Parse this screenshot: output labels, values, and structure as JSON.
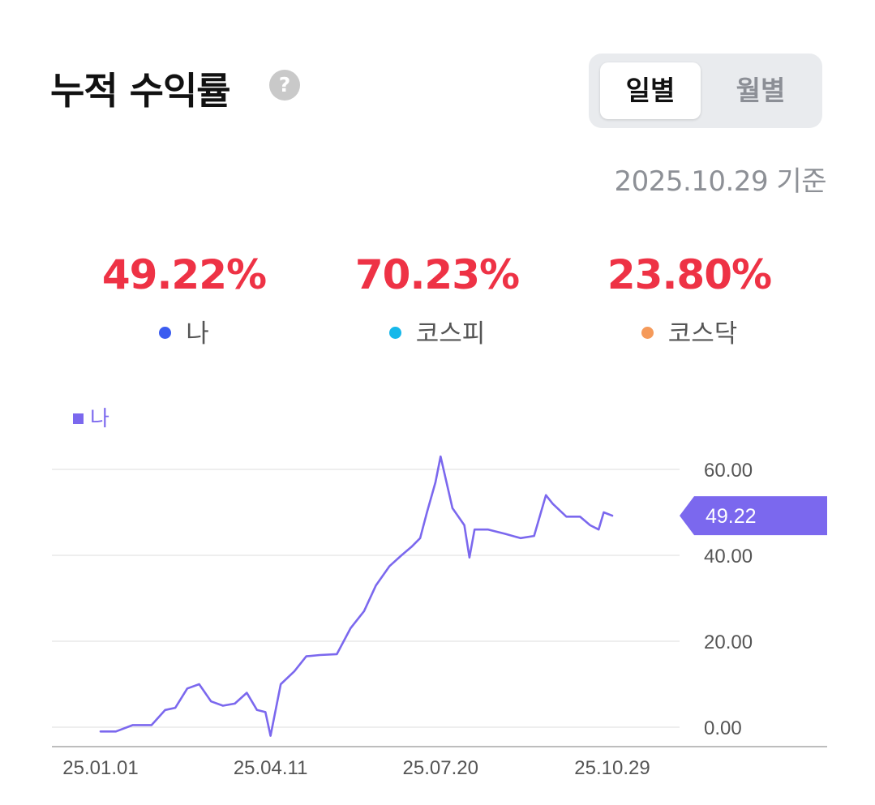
{
  "header": {
    "title": "누적 수익률",
    "help_icon": "question-circle-icon",
    "toggle": {
      "daily": "일별",
      "monthly": "월별",
      "selected": "daily"
    },
    "as_of": "2025.10.29 기준"
  },
  "stats": [
    {
      "value": "49.22%",
      "label": "나",
      "dot_color": "#3b5cf0"
    },
    {
      "value": "70.23%",
      "label": "코스피",
      "dot_color": "#16b8ea"
    },
    {
      "value": "23.80%",
      "label": "코스닥",
      "dot_color": "#f59a5a"
    }
  ],
  "colors": {
    "accent_red": "#ee3245",
    "series": "#7b68ee"
  },
  "chart_data": {
    "type": "line",
    "legend": [
      {
        "name": "나",
        "color": "#7b68ee"
      }
    ],
    "legend_position": "top-left",
    "y_ticks": [
      "60.00",
      "40.00",
      "20.00",
      "0.00"
    ],
    "x_ticks": [
      "25.01.01",
      "25.04.11",
      "25.07.20",
      "25.10.29"
    ],
    "ylim": [
      -2,
      64
    ],
    "grid": true,
    "current_value_label": "49.22",
    "current_value": 49.22,
    "series": [
      {
        "name": "나",
        "color": "#7b68ee",
        "x": [
          "2025-01-01",
          "2025-01-10",
          "2025-01-20",
          "2025-01-31",
          "2025-02-08",
          "2025-02-14",
          "2025-02-21",
          "2025-02-28",
          "2025-03-07",
          "2025-03-14",
          "2025-03-21",
          "2025-03-28",
          "2025-04-03",
          "2025-04-08",
          "2025-04-11",
          "2025-04-17",
          "2025-04-25",
          "2025-05-02",
          "2025-05-10",
          "2025-05-20",
          "2025-05-28",
          "2025-06-05",
          "2025-06-12",
          "2025-06-20",
          "2025-06-27",
          "2025-07-03",
          "2025-07-08",
          "2025-07-12",
          "2025-07-17",
          "2025-07-20",
          "2025-07-27",
          "2025-08-03",
          "2025-08-06",
          "2025-08-09",
          "2025-08-17",
          "2025-08-27",
          "2025-09-05",
          "2025-09-13",
          "2025-09-20",
          "2025-09-24",
          "2025-10-02",
          "2025-10-10",
          "2025-10-16",
          "2025-10-21",
          "2025-10-24",
          "2025-10-29"
        ],
        "values": [
          -1,
          -1,
          0.5,
          0.5,
          4,
          4.5,
          9,
          10,
          6,
          5,
          5.5,
          8,
          4,
          3.5,
          -2,
          10,
          13,
          16.5,
          16.8,
          17,
          23,
          27,
          33,
          37.5,
          40,
          42,
          44,
          50,
          57,
          63,
          51,
          47,
          39.5,
          46,
          46,
          45,
          44,
          44.5,
          54,
          52,
          49,
          49,
          47,
          46,
          50,
          49.22
        ]
      }
    ]
  }
}
